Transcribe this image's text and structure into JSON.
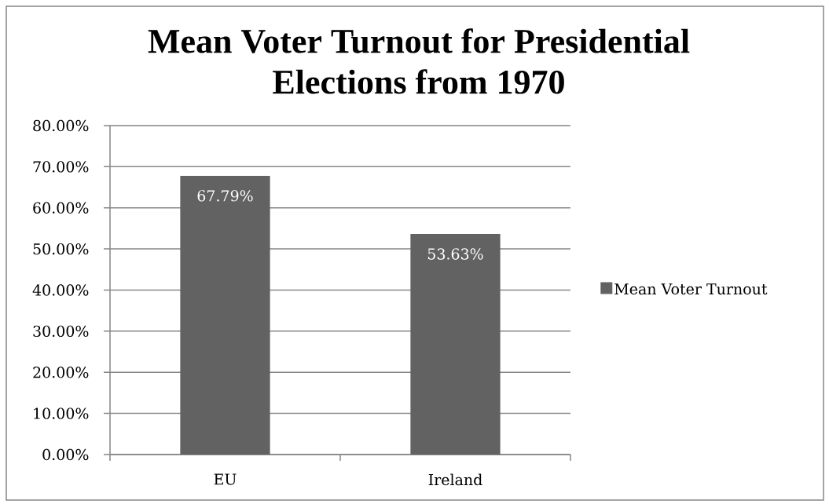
{
  "chart_data": {
    "type": "bar",
    "title": "Mean Voter Turnout for Presidential Elections from 1970",
    "categories": [
      "EU",
      "Ireland"
    ],
    "series": [
      {
        "name": "Mean Voter Turnout",
        "color": "#626262",
        "values": [
          67.79,
          53.63
        ],
        "value_labels": [
          "67.79%",
          "53.63%"
        ]
      }
    ],
    "ylim": [
      0,
      80
    ],
    "yticks": [
      {
        "value": 0,
        "label": "0.00%"
      },
      {
        "value": 10,
        "label": "10.00%"
      },
      {
        "value": 20,
        "label": "20.00%"
      },
      {
        "value": 30,
        "label": "30.00%"
      },
      {
        "value": 40,
        "label": "40.00%"
      },
      {
        "value": 50,
        "label": "50.00%"
      },
      {
        "value": 60,
        "label": "60.00%"
      },
      {
        "value": 70,
        "label": "70.00%"
      },
      {
        "value": 80,
        "label": "80.00%"
      }
    ],
    "grid": "y",
    "legend": "right"
  }
}
